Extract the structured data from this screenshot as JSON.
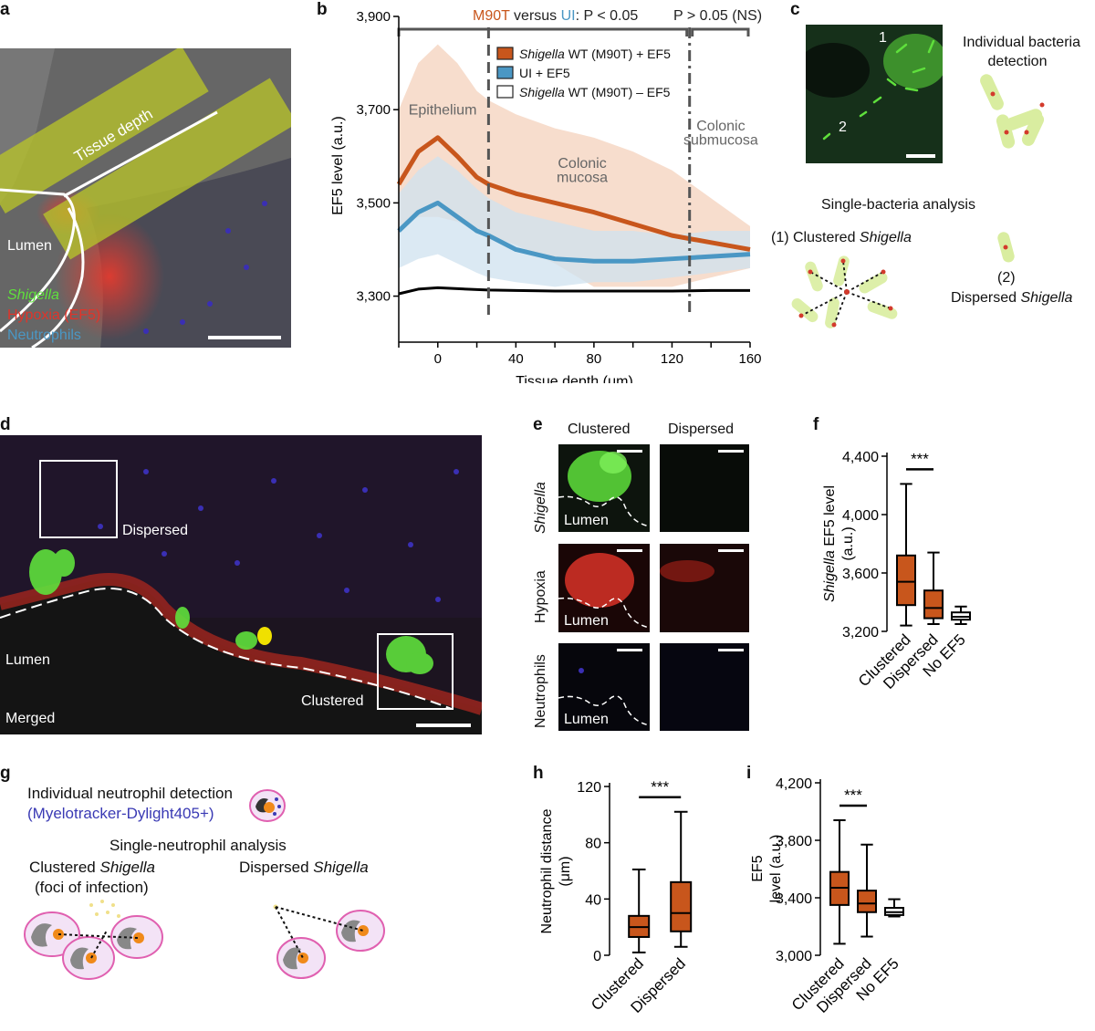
{
  "panels": {
    "a": "a",
    "b": "b",
    "c": "c",
    "d": "d",
    "e": "e",
    "f": "f",
    "g": "g",
    "h": "h",
    "i": "i"
  },
  "colors": {
    "orange": "#c8561c",
    "blue": "#4a97c4",
    "black": "#000000",
    "orange_band": "#f6d7c4",
    "blue_band": "#cfe2ef",
    "grey_band": "#cfcfcf",
    "green": "#5fe03c",
    "red": "#e0342a",
    "neutrophil_blue": "#3a2fb4",
    "bacteria_fill": "#d9eda0",
    "dot_red": "#d33a2c",
    "cell_pink": "#e060b0"
  },
  "panel_a": {
    "tissue_depth": "Tissue depth",
    "lumen": "Lumen",
    "legend_shigella": "Shigella",
    "legend_hypoxia": "Hypoxia (EF5)",
    "legend_neutrophils": "Neutrophils"
  },
  "panel_b": {
    "sig_m90t": "M90T",
    "sig_versus": " versus ",
    "sig_ui": "UI",
    "sig_p1": ": P < 0.05",
    "sig_p2": "P > 0.05 (NS)",
    "region_epithelium": "Epithelium",
    "region_mucosa_1": "Colonic",
    "region_mucosa_2": "mucosa",
    "region_submucosa_1": "Colonic",
    "region_submucosa_2": "submucosa",
    "legend": [
      {
        "label_italic": "Shigella",
        "label_rest": " WT (M90T) + EF5",
        "color": "#c8561c"
      },
      {
        "label_italic": "",
        "label_rest": "UI + EF5",
        "color": "#4a97c4"
      },
      {
        "label_italic": "Shigella",
        "label_rest": " WT (M90T) – EF5",
        "color": "#ffffff"
      }
    ]
  },
  "panel_c": {
    "n1": "1",
    "n2": "2",
    "individual_1": "Individual bacteria",
    "individual_2": "detection",
    "single": "Single-bacteria analysis",
    "clustered_prefix": "(1) Clustered ",
    "clustered_italic": "Shigella",
    "dispersed_num": "(2)",
    "dispersed_prefix": "Dispersed ",
    "dispersed_italic": "Shigella"
  },
  "panel_d": {
    "dispersed": "Dispersed",
    "lumen": "Lumen",
    "merged": "Merged",
    "clustered": "Clustered"
  },
  "panel_e": {
    "col_clustered": "Clustered",
    "col_dispersed": "Dispersed",
    "row_shigella": "Shigella",
    "row_hypoxia": "Hypoxia",
    "row_neutrophils": "Neutrophils",
    "lumen": "Lumen"
  },
  "panel_g": {
    "individual": "Individual neutrophil detection",
    "marker": "(Myelotracker-Dylight405+)",
    "single": "Single-neutrophil analysis",
    "clustered_italic": "Shigella",
    "clustered_prefix": "Clustered ",
    "foci": "(foci of infection)",
    "dispersed_prefix": "Dispersed ",
    "dispersed_italic": "Shigella"
  },
  "chart_data": [
    {
      "panel": "b",
      "type": "line",
      "xlabel": "Tissue depth (μm)",
      "ylabel": "EF5 level (a.u.)",
      "xlim": [
        -20,
        160
      ],
      "ylim": [
        3260,
        3900
      ],
      "x_ticks": [
        0,
        40,
        80,
        120,
        160
      ],
      "y_ticks": [
        3300,
        3500,
        3700,
        3900
      ],
      "y_tick_labels": [
        "3,300",
        "3,500",
        "3,700",
        "3,900"
      ],
      "boundaries_x": [
        26,
        129
      ],
      "legend_position": "top-right",
      "x": [
        -20,
        -10,
        0,
        10,
        20,
        26,
        40,
        60,
        80,
        100,
        120,
        140,
        160
      ],
      "series": [
        {
          "name": "Shigella WT (M90T) + EF5",
          "color": "#c8561c",
          "values": [
            3540,
            3610,
            3640,
            3600,
            3555,
            3540,
            3520,
            3500,
            3480,
            3455,
            3430,
            3415,
            3400
          ],
          "lower": [
            3450,
            3470,
            3470,
            3460,
            3440,
            3430,
            3410,
            3370,
            3320,
            3320,
            3320,
            3340,
            3360
          ],
          "upper": [
            3700,
            3800,
            3840,
            3800,
            3740,
            3720,
            3690,
            3660,
            3640,
            3610,
            3570,
            3510,
            3450
          ]
        },
        {
          "name": "UI + EF5",
          "color": "#4a97c4",
          "values": [
            3440,
            3480,
            3500,
            3470,
            3440,
            3430,
            3400,
            3380,
            3375,
            3375,
            3380,
            3385,
            3390
          ],
          "lower": [
            3360,
            3380,
            3390,
            3370,
            3350,
            3340,
            3330,
            3320,
            3330,
            3330,
            3340,
            3350,
            3360
          ],
          "upper": [
            3520,
            3570,
            3600,
            3570,
            3530,
            3510,
            3480,
            3460,
            3440,
            3440,
            3430,
            3440,
            3440
          ]
        },
        {
          "name": "Shigella WT (M90T) – EF5",
          "color": "#000000",
          "values": [
            3305,
            3315,
            3318,
            3316,
            3314,
            3313,
            3312,
            3311,
            3311,
            3311,
            3311,
            3312,
            3312
          ]
        }
      ]
    },
    {
      "panel": "f",
      "type": "box",
      "ylabel_italic": "Shigella",
      "ylabel": "EF5 level",
      "ylabel2": "(a.u.)",
      "ylim": [
        3200,
        4400
      ],
      "y_ticks": [
        3200,
        3600,
        4000,
        4400
      ],
      "y_tick_labels": [
        "3,200",
        "3,600",
        "4,000",
        "4,400"
      ],
      "categories": [
        "Clustered",
        "Dispersed",
        "No EF5"
      ],
      "boxes": [
        {
          "min": 3240,
          "q1": 3380,
          "median": 3540,
          "q3": 3720,
          "max": 4210,
          "color": "#c8561c"
        },
        {
          "min": 3250,
          "q1": 3290,
          "median": 3360,
          "q3": 3480,
          "max": 3740,
          "color": "#c8561c"
        },
        {
          "min": 3250,
          "q1": 3280,
          "median": 3300,
          "q3": 3330,
          "max": 3370,
          "color": "#ffffff"
        }
      ],
      "significance": "***"
    },
    {
      "panel": "h",
      "type": "box",
      "ylabel": "Neutrophil distance",
      "ylabel2": "(μm)",
      "ylim": [
        0,
        120
      ],
      "y_ticks": [
        0,
        40,
        80,
        120
      ],
      "y_tick_labels": [
        "0",
        "40",
        "80",
        "120"
      ],
      "categories": [
        "Clustered",
        "Dispersed"
      ],
      "boxes": [
        {
          "min": 2,
          "q1": 13,
          "median": 20,
          "q3": 28,
          "max": 61,
          "color": "#c8561c"
        },
        {
          "min": 6,
          "q1": 17,
          "median": 30,
          "q3": 52,
          "max": 102,
          "color": "#c8561c"
        }
      ],
      "significance": "***"
    },
    {
      "panel": "i",
      "type": "box",
      "ylabel": "EF5",
      "ylabel2": "level (a.u.)",
      "ylim": [
        3000,
        4200
      ],
      "y_ticks": [
        3000,
        3400,
        3800,
        4200
      ],
      "y_tick_labels": [
        "3,000",
        "3,400",
        "3,800",
        "4,200"
      ],
      "categories": [
        "Clustered",
        "Dispersed",
        "No EF5"
      ],
      "boxes": [
        {
          "min": 3080,
          "q1": 3350,
          "median": 3470,
          "q3": 3580,
          "max": 3940,
          "color": "#c8561c"
        },
        {
          "min": 3130,
          "q1": 3300,
          "median": 3360,
          "q3": 3450,
          "max": 3770,
          "color": "#c8561c"
        },
        {
          "min": 3270,
          "q1": 3280,
          "median": 3300,
          "q3": 3330,
          "max": 3390,
          "color": "#ffffff"
        }
      ],
      "significance": "***"
    }
  ]
}
